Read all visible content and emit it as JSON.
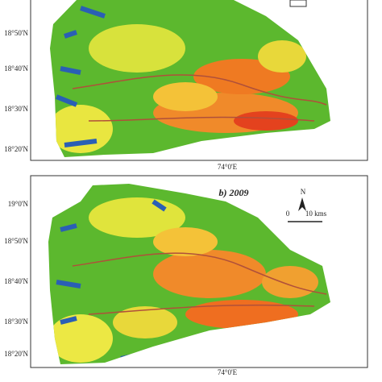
{
  "panels": [
    {
      "lat_labels": [
        "18°50'N",
        "18°40'N",
        "18°30'N",
        "18°20'N"
      ],
      "lon_label": "74°0'E"
    },
    {
      "title": "b) 2009",
      "north": "N",
      "scale_start": "0",
      "scale_end": "10 kms",
      "lat_labels": [
        "19°0'N",
        "18°50'N",
        "18°40'N",
        "18°30'N",
        "18°20'N"
      ],
      "lon_label": "74°0'E"
    }
  ]
}
